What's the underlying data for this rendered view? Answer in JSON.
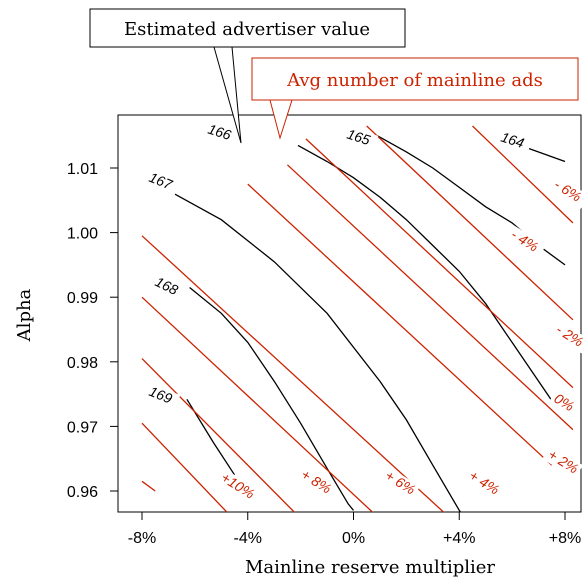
{
  "chart_data": {
    "type": "contour",
    "xlabel": "Mainline reserve multiplier",
    "ylabel": "Alpha",
    "xlim": [
      -9,
      10
    ],
    "ylim": [
      0.9575,
      1.0175
    ],
    "x_ticks": [
      -8,
      -4,
      0,
      4,
      8
    ],
    "x_tick_labels": [
      "-8%",
      "-4%",
      "0%",
      "+4%",
      "+8%"
    ],
    "y_ticks": [
      0.96,
      0.97,
      0.98,
      0.99,
      1.0,
      1.01
    ],
    "y_tick_labels": [
      "0.96",
      "0.97",
      "0.98",
      "0.99",
      "1.00",
      "1.01"
    ],
    "grid": false,
    "colors": {
      "black_series": "#000000",
      "red_series": "#cc2200"
    },
    "annotations": [
      {
        "text": "Estimated advertiser value",
        "color": "#000000"
      },
      {
        "text": "Avg number of mainline ads",
        "color": "#cc2200"
      }
    ],
    "series": [
      {
        "group": "Estimated advertiser value",
        "color": "#000000",
        "contours": [
          {
            "label": "164",
            "points": [
              [
                6.3,
                1.0135
              ],
              [
                8.0,
                1.011
              ]
            ]
          },
          {
            "label": "165",
            "points": [
              [
                0.9,
                1.015
              ],
              [
                2.0,
                1.0125
              ],
              [
                3.0,
                1.01
              ],
              [
                4.0,
                1.007
              ],
              [
                5.0,
                1.004
              ],
              [
                6.0,
                1.0015
              ],
              [
                7.0,
                0.998
              ],
              [
                8.0,
                0.995
              ]
            ]
          },
          {
            "label": "166",
            "points": [
              [
                -2.1,
                1.0135
              ],
              [
                -1.0,
                1.011
              ],
              [
                0.0,
                1.0085
              ],
              [
                1.0,
                1.0055
              ],
              [
                2.0,
                1.002
              ],
              [
                3.0,
                0.998
              ],
              [
                4.0,
                0.994
              ],
              [
                5.0,
                0.989
              ],
              [
                6.0,
                0.983
              ],
              [
                7.0,
                0.977
              ],
              [
                7.5,
                0.974
              ]
            ]
          },
          {
            "label": "167",
            "points": [
              [
                -7.0,
                1.0065
              ],
              [
                -5.0,
                1.002
              ],
              [
                -3.0,
                0.9955
              ],
              [
                -1.0,
                0.9875
              ],
              [
                1.0,
                0.977
              ],
              [
                2.0,
                0.971
              ],
              [
                3.0,
                0.964
              ],
              [
                4.0,
                0.957
              ],
              [
                4.5,
                0.954
              ]
            ]
          },
          {
            "label": "168",
            "points": [
              [
                -6.2,
                0.9915
              ],
              [
                -5.0,
                0.9875
              ],
              [
                -4.0,
                0.983
              ],
              [
                -3.0,
                0.977
              ],
              [
                -2.0,
                0.9705
              ],
              [
                -1.0,
                0.9635
              ],
              [
                -0.2,
                0.958
              ],
              [
                0.0,
                0.957
              ]
            ]
          },
          {
            "label": "169",
            "points": [
              [
                -6.3,
                0.9742
              ],
              [
                -5.3,
                0.9675
              ],
              [
                -4.5,
                0.9625
              ]
            ]
          }
        ]
      },
      {
        "group": "Avg number of mainline ads",
        "color": "#cc2200",
        "contours": [
          {
            "label": "+10%",
            "points": [
              [
                -8.0,
                0.9615
              ],
              [
                -7.5,
                0.96
              ]
            ]
          },
          {
            "label": "+10%",
            "points": [
              [
                -8.0,
                0.9705
              ],
              [
                -4.5,
                0.9555
              ]
            ]
          },
          {
            "label": "+ 8%",
            "points": [
              [
                -8.0,
                0.9805
              ],
              [
                -1.7,
                0.9545
              ]
            ]
          },
          {
            "label": "+ 6%",
            "points": [
              [
                -8.0,
                0.99
              ],
              [
                1.3,
                0.9545
              ]
            ]
          },
          {
            "label": "+ 4%",
            "points": [
              [
                -8.0,
                0.9995
              ],
              [
                4.0,
                0.9545
              ]
            ]
          },
          {
            "label": "+ 2%",
            "points": [
              [
                -4.0,
                1.0075
              ],
              [
                7.5,
                0.964
              ]
            ]
          },
          {
            "label": "0%",
            "points": [
              [
                -2.5,
                1.0105
              ],
              [
                8.3,
                0.9695
              ]
            ]
          },
          {
            "label": "- 2%",
            "points": [
              [
                -1.8,
                1.0145
              ],
              [
                8.3,
                0.976
              ]
            ]
          },
          {
            "label": "- 4%",
            "points": [
              [
                0.5,
                1.0165
              ],
              [
                8.3,
                0.9865
              ]
            ]
          },
          {
            "label": "- 6%",
            "points": [
              [
                4.5,
                1.0165
              ],
              [
                8.3,
                1.0015
              ]
            ]
          }
        ]
      }
    ]
  },
  "label_positions_note": ""
}
